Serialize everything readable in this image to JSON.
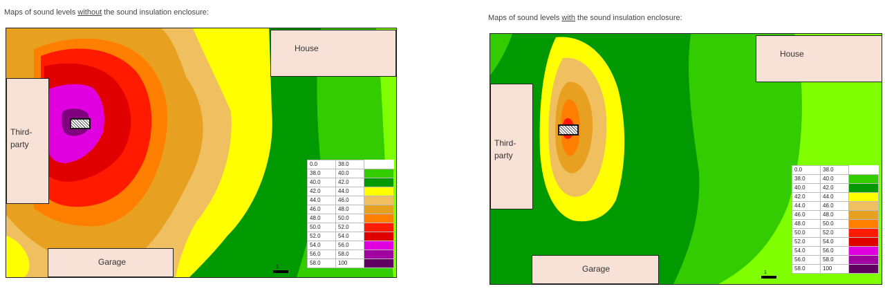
{
  "left": {
    "caption_pre": "Maps of sound levels ",
    "caption_em": "without",
    "caption_post": " the sound insulation enclosure:",
    "boxes": {
      "house": "House",
      "third_line1": "Third-",
      "third_line2": "party",
      "garage": "Garage"
    },
    "scale_label": "1"
  },
  "right": {
    "caption_pre": "Maps of sound levels ",
    "caption_em": "with",
    "caption_post": " the sound insulation enclosure:",
    "boxes": {
      "house": "House",
      "third_line1": "Third-",
      "third_line2": "party",
      "garage": "Garage"
    },
    "scale_label": "1"
  },
  "legend": {
    "rows": [
      {
        "from": "0.0",
        "to": "38.0",
        "color": "#ffffff"
      },
      {
        "from": "38.0",
        "to": "40.0",
        "color": "#33cc00"
      },
      {
        "from": "40.0",
        "to": "42.0",
        "color": "#009900"
      },
      {
        "from": "42.0",
        "to": "44.0",
        "color": "#ffff00"
      },
      {
        "from": "44.0",
        "to": "46.0",
        "color": "#f0c060"
      },
      {
        "from": "46.0",
        "to": "48.0",
        "color": "#e8a020"
      },
      {
        "from": "48.0",
        "to": "50.0",
        "color": "#ff7f00"
      },
      {
        "from": "50.0",
        "to": "52.0",
        "color": "#ff1a00"
      },
      {
        "from": "52.0",
        "to": "54.0",
        "color": "#e00000"
      },
      {
        "from": "54.0",
        "to": "56.0",
        "color": "#e000e0"
      },
      {
        "from": "56.0",
        "to": "58.0",
        "color": "#a000a0"
      },
      {
        "from": "58.0",
        "to": "100",
        "color": "#600060"
      }
    ]
  }
}
